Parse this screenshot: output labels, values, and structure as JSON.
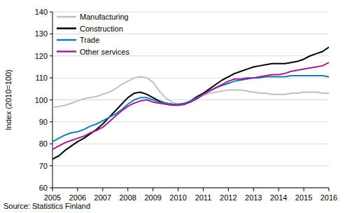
{
  "chart_data": {
    "type": "line",
    "y_label": "Index (2010=100)",
    "source": "Source: Statistics Finland",
    "x": [
      2005,
      2005.25,
      2005.5,
      2005.75,
      2006,
      2006.25,
      2006.5,
      2006.75,
      2007,
      2007.25,
      2007.5,
      2007.75,
      2008,
      2008.25,
      2008.5,
      2008.75,
      2009,
      2009.25,
      2009.5,
      2009.75,
      2010,
      2010.25,
      2010.5,
      2010.75,
      2011,
      2011.25,
      2011.5,
      2011.75,
      2012,
      2012.25,
      2012.5,
      2012.75,
      2013,
      2013.25,
      2013.5,
      2013.75,
      2014,
      2014.25,
      2014.5,
      2014.75,
      2015,
      2015.25,
      2015.5,
      2015.75,
      2016
    ],
    "series": [
      {
        "name": "Manufacturing",
        "color": "#c0c0c0",
        "values": [
          96.5,
          97,
          97.5,
          98.5,
          99.5,
          100.5,
          101,
          101.5,
          102.5,
          103.5,
          105,
          107,
          108.5,
          110,
          110.5,
          110,
          108,
          104,
          101,
          99,
          98,
          98,
          99,
          100.5,
          102,
          103,
          103.5,
          104,
          104.5,
          104.5,
          104.5,
          104,
          103.5,
          103,
          103,
          102.5,
          102.5,
          102.5,
          103,
          103,
          103.5,
          103.5,
          103.5,
          103,
          103
        ]
      },
      {
        "name": "Construction",
        "color": "#000000",
        "values": [
          73,
          74.5,
          77,
          79,
          81,
          82.5,
          84.5,
          86.5,
          89,
          92,
          95,
          98,
          101,
          103,
          103.5,
          102.5,
          101,
          99.5,
          98.5,
          98,
          97.5,
          98,
          99.5,
          101.5,
          103,
          105,
          107,
          109,
          110.5,
          112,
          113,
          114,
          115,
          115.5,
          116,
          116.5,
          116.5,
          116.5,
          117,
          117.5,
          118.5,
          120,
          121,
          122,
          124
        ]
      },
      {
        "name": "Trade",
        "color": "#1a7ab5",
        "values": [
          81,
          82.5,
          84,
          85,
          85.5,
          86.5,
          88,
          89,
          90.5,
          92,
          93.5,
          95.5,
          98,
          100,
          101,
          101,
          100,
          99,
          98.5,
          98,
          98,
          98.5,
          99.5,
          101,
          102.5,
          104,
          105.5,
          106.5,
          107.5,
          108.5,
          109,
          109.5,
          110,
          110,
          110.5,
          110.5,
          110.5,
          110.5,
          111,
          111,
          111,
          111,
          111,
          111,
          110.5
        ]
      },
      {
        "name": "Other services",
        "color": "#a0208e",
        "values": [
          77.5,
          79,
          80.5,
          81.5,
          82.5,
          83.5,
          85,
          86,
          87.5,
          90,
          92.5,
          95,
          97,
          98.5,
          99.5,
          100,
          99,
          98.5,
          98,
          97.5,
          97.5,
          98,
          99,
          100.5,
          102.5,
          104,
          105.5,
          107,
          108.5,
          109.5,
          109.5,
          110,
          110,
          110.5,
          111,
          111.5,
          111.5,
          112,
          113,
          113.5,
          114,
          114.5,
          115,
          115.5,
          117
        ]
      }
    ],
    "xlim": [
      2005,
      2016
    ],
    "xticks": [
      2005,
      2006,
      2007,
      2008,
      2009,
      2010,
      2011,
      2012,
      2013,
      2014,
      2015,
      2016
    ],
    "ylim": [
      60,
      140
    ],
    "yticks": [
      60,
      70,
      80,
      90,
      100,
      110,
      120,
      130,
      140
    ],
    "grid": true,
    "legend": "top-left"
  }
}
